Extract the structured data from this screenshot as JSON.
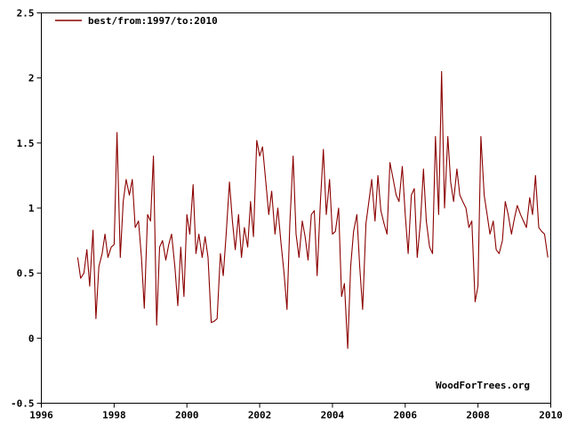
{
  "chart_data": {
    "type": "line",
    "legend_position": "top-left",
    "grid": false,
    "xlim": [
      1996,
      2010
    ],
    "ylim": [
      -0.5,
      2.5
    ],
    "x_ticks": [
      1996,
      1998,
      2000,
      2002,
      2004,
      2006,
      2008,
      2010
    ],
    "x_tick_labels": [
      "1996",
      "1998",
      "2000",
      "2002",
      "2004",
      "2006",
      "2008",
      "2010"
    ],
    "y_ticks": [
      -0.5,
      0,
      0.5,
      1,
      1.5,
      2,
      2.5
    ],
    "y_tick_labels": [
      "-0.5",
      "0",
      "0.5",
      "1",
      "1.5",
      "2",
      "2.5"
    ],
    "colors": {
      "series": "#8b0000",
      "axis": "#000000",
      "background": "#ffffff"
    },
    "credit": "WoodForTrees.org",
    "series": [
      {
        "name": "best/from:1997/to:2010",
        "x": [
          1997.0,
          1997.08,
          1997.17,
          1997.25,
          1997.33,
          1997.42,
          1997.5,
          1997.58,
          1997.67,
          1997.75,
          1997.83,
          1997.92,
          1998.0,
          1998.08,
          1998.17,
          1998.25,
          1998.33,
          1998.42,
          1998.5,
          1998.58,
          1998.67,
          1998.75,
          1998.83,
          1998.92,
          1999.0,
          1999.08,
          1999.17,
          1999.25,
          1999.33,
          1999.42,
          1999.5,
          1999.58,
          1999.67,
          1999.75,
          1999.83,
          1999.92,
          2000.0,
          2000.08,
          2000.17,
          2000.25,
          2000.33,
          2000.42,
          2000.5,
          2000.58,
          2000.67,
          2000.75,
          2000.83,
          2000.92,
          2001.0,
          2001.08,
          2001.17,
          2001.25,
          2001.33,
          2001.42,
          2001.5,
          2001.58,
          2001.67,
          2001.75,
          2001.83,
          2001.92,
          2002.0,
          2002.08,
          2002.17,
          2002.25,
          2002.33,
          2002.42,
          2002.5,
          2002.58,
          2002.67,
          2002.75,
          2002.83,
          2002.92,
          2003.0,
          2003.08,
          2003.17,
          2003.25,
          2003.33,
          2003.42,
          2003.5,
          2003.58,
          2003.67,
          2003.75,
          2003.83,
          2003.92,
          2004.0,
          2004.08,
          2004.17,
          2004.25,
          2004.33,
          2004.42,
          2004.5,
          2004.58,
          2004.67,
          2004.75,
          2004.83,
          2004.92,
          2005.0,
          2005.08,
          2005.17,
          2005.25,
          2005.33,
          2005.42,
          2005.5,
          2005.58,
          2005.67,
          2005.75,
          2005.83,
          2005.92,
          2006.0,
          2006.08,
          2006.17,
          2006.25,
          2006.33,
          2006.42,
          2006.5,
          2006.58,
          2006.67,
          2006.75,
          2006.83,
          2006.92,
          2007.0,
          2007.08,
          2007.17,
          2007.25,
          2007.33,
          2007.42,
          2007.5,
          2007.58,
          2007.67,
          2007.75,
          2007.83,
          2007.92,
          2008.0,
          2008.08,
          2008.17,
          2008.25,
          2008.33,
          2008.42,
          2008.5,
          2008.58,
          2008.67,
          2008.75,
          2008.83,
          2008.92,
          2009.0,
          2009.08,
          2009.17,
          2009.25,
          2009.33,
          2009.42,
          2009.5,
          2009.58,
          2009.67,
          2009.75,
          2009.83,
          2009.92
        ],
        "y": [
          0.62,
          0.46,
          0.5,
          0.68,
          0.4,
          0.83,
          0.15,
          0.55,
          0.65,
          0.8,
          0.62,
          0.7,
          0.72,
          1.58,
          0.62,
          1.05,
          1.22,
          1.1,
          1.22,
          0.85,
          0.9,
          0.62,
          0.23,
          0.95,
          0.9,
          1.4,
          0.1,
          0.7,
          0.75,
          0.6,
          0.72,
          0.8,
          0.55,
          0.25,
          0.7,
          0.32,
          0.95,
          0.8,
          1.18,
          0.65,
          0.8,
          0.62,
          0.78,
          0.62,
          0.12,
          0.13,
          0.15,
          0.65,
          0.48,
          0.8,
          1.2,
          0.9,
          0.68,
          0.95,
          0.62,
          0.85,
          0.7,
          1.05,
          0.78,
          1.52,
          1.4,
          1.47,
          1.2,
          0.95,
          1.13,
          0.8,
          1.0,
          0.75,
          0.5,
          0.22,
          0.88,
          1.4,
          0.8,
          0.62,
          0.9,
          0.78,
          0.6,
          0.95,
          0.98,
          0.48,
          1.05,
          1.45,
          0.95,
          1.22,
          0.8,
          0.82,
          1.0,
          0.32,
          0.42,
          -0.08,
          0.55,
          0.82,
          0.95,
          0.55,
          0.22,
          0.88,
          1.05,
          1.22,
          0.9,
          1.25,
          0.98,
          0.88,
          0.8,
          1.35,
          1.22,
          1.1,
          1.05,
          1.32,
          0.95,
          0.65,
          1.1,
          1.15,
          0.62,
          0.9,
          1.3,
          0.9,
          0.7,
          0.65,
          1.55,
          0.95,
          2.05,
          1.0,
          1.55,
          1.2,
          1.05,
          1.3,
          1.1,
          1.05,
          1.0,
          0.85,
          0.9,
          0.28,
          0.4,
          1.55,
          1.1,
          0.95,
          0.8,
          0.9,
          0.68,
          0.65,
          0.75,
          1.05,
          0.95,
          0.8,
          0.92,
          1.02,
          0.95,
          0.9,
          0.85,
          1.08,
          0.95,
          1.25,
          0.85,
          0.82,
          0.8,
          0.62
        ]
      }
    ]
  }
}
